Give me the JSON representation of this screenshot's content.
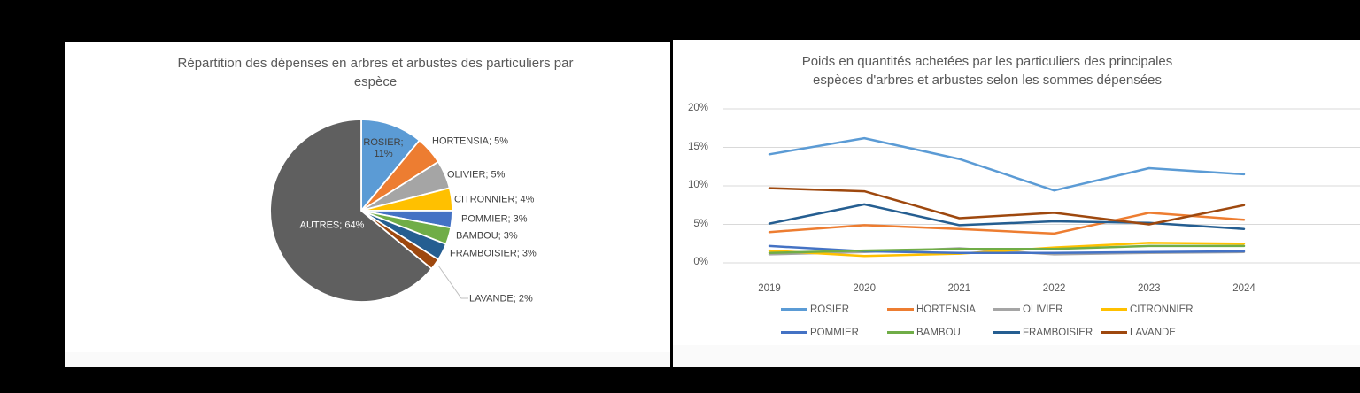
{
  "page": {
    "background": "#000000"
  },
  "chart_data": [
    {
      "type": "pie",
      "title": "Répartition des dépenses en arbres et arbustes des particuliers par espèce",
      "title_lines": [
        "Répartition des dépenses en arbres et arbustes des particuliers par",
        "espèce"
      ],
      "unit": "%",
      "start_angle_deg": 0,
      "direction": "clockwise",
      "slices": [
        {
          "name": "ROSIER",
          "value": 11,
          "color": "#5B9BD5",
          "label_lines": [
            "ROSIER;",
            "11%"
          ],
          "label": "ROSIER; 11%"
        },
        {
          "name": "HORTENSIA",
          "value": 5,
          "color": "#ED7D31",
          "label": "HORTENSIA; 5%"
        },
        {
          "name": "OLIVIER",
          "value": 5,
          "color": "#A5A5A5",
          "label": "OLIVIER; 5%"
        },
        {
          "name": "CITRONNIER",
          "value": 4,
          "color": "#FFC000",
          "label": "CITRONNIER; 4%"
        },
        {
          "name": "POMMIER",
          "value": 3,
          "color": "#4472C4",
          "label": "POMMIER; 3%"
        },
        {
          "name": "BAMBOU",
          "value": 3,
          "color": "#70AD47",
          "label": "BAMBOU; 3%"
        },
        {
          "name": "FRAMBOISIER",
          "value": 3,
          "color": "#255E91",
          "label": "FRAMBOISIER; 3%"
        },
        {
          "name": "LAVANDE",
          "value": 2,
          "color": "#9E480E",
          "label": "LAVANDE; 2%"
        },
        {
          "name": "AUTRES",
          "value": 64,
          "color": "#5F5F5F",
          "label": "AUTRES; 64%",
          "label_color": "#FFFFFF"
        }
      ]
    },
    {
      "type": "line",
      "title": "Poids en quantités achetées par les particuliers des principales espèces d'arbres et arbustes selon les sommes dépensées",
      "title_lines": [
        "Poids en quantités achetées par les particuliers des principales",
        "espèces d'arbres et arbustes selon les sommes dépensées"
      ],
      "x_labels": [
        "2019",
        "2020",
        "2021",
        "2022",
        "2023",
        "2024"
      ],
      "y_tick_labels": [
        "20%",
        "15%",
        "10%",
        "5%",
        "0%"
      ],
      "y_tick_values": [
        20,
        15,
        10,
        5,
        0
      ],
      "ylim": [
        0,
        20
      ],
      "grid": true,
      "gridline_color": "#d9d9d9",
      "legend_position": "bottom",
      "series": [
        {
          "name": "ROSIER",
          "color": "#5B9BD5",
          "values": [
            14.1,
            16.2,
            13.5,
            9.4,
            12.3,
            11.5
          ]
        },
        {
          "name": "HORTENSIA",
          "color": "#ED7D31",
          "values": [
            4.0,
            4.9,
            4.4,
            3.8,
            6.5,
            5.6
          ]
        },
        {
          "name": "OLIVIER",
          "color": "#A5A5A5",
          "values": [
            1.1,
            1.4,
            1.9,
            1.1,
            1.3,
            1.4
          ]
        },
        {
          "name": "CITRONNIER",
          "color": "#FFC000",
          "values": [
            1.6,
            0.9,
            1.2,
            2.0,
            2.6,
            2.5
          ]
        },
        {
          "name": "POMMIER",
          "color": "#4472C4",
          "values": [
            2.2,
            1.5,
            1.3,
            1.3,
            1.4,
            1.5
          ]
        },
        {
          "name": "BAMBOU",
          "color": "#70AD47",
          "values": [
            1.3,
            1.6,
            1.8,
            1.8,
            2.2,
            2.2
          ]
        },
        {
          "name": "FRAMBOISIER",
          "color": "#255E91",
          "values": [
            5.1,
            7.6,
            4.9,
            5.4,
            5.2,
            4.4
          ]
        },
        {
          "name": "LAVANDE",
          "color": "#9E480E",
          "values": [
            9.7,
            9.3,
            5.8,
            6.5,
            5.0,
            7.5
          ]
        }
      ],
      "legend_rows": [
        [
          "ROSIER",
          "HORTENSIA",
          "OLIVIER",
          "CITRONNIER"
        ],
        [
          "POMMIER",
          "BAMBOU",
          "FRAMBOISIER",
          "LAVANDE"
        ]
      ]
    }
  ]
}
